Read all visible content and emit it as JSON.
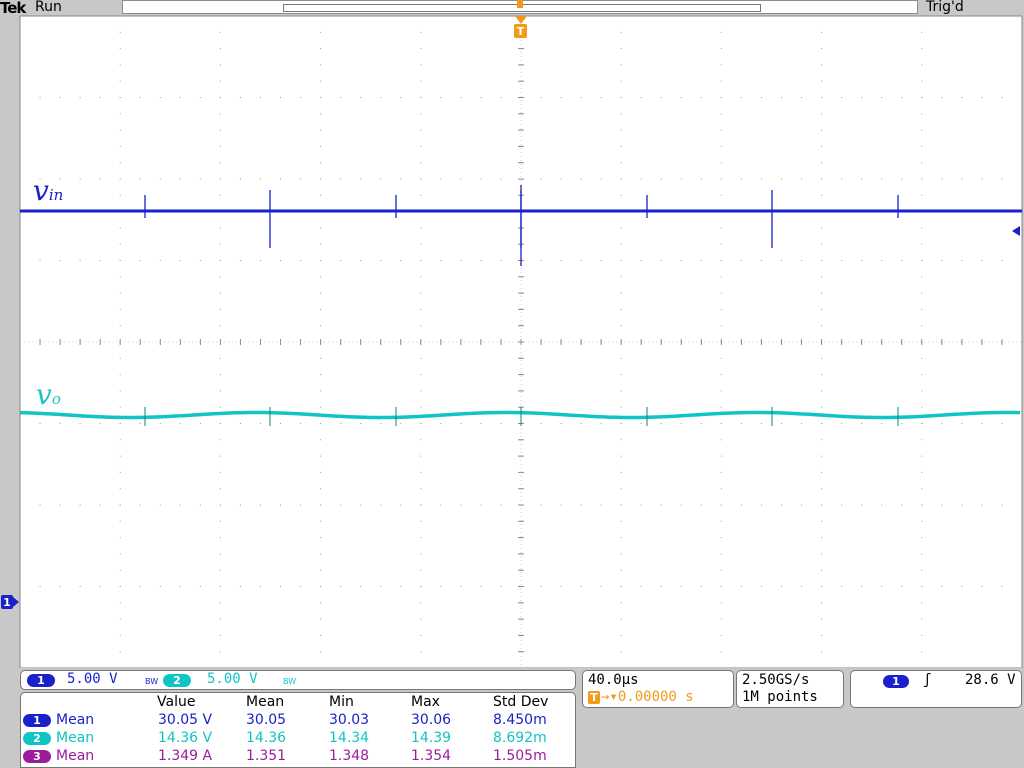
{
  "header": {
    "brand": "Tek",
    "run_state": "Run",
    "trigger_state": "Trig'd",
    "trigger_marker": "T"
  },
  "channels": [
    {
      "num": "1",
      "scale": "5.00 V",
      "bw": "BW",
      "color": "#1a21c8"
    },
    {
      "num": "2",
      "scale": "5.00 V",
      "bw": "BW",
      "color": "#11c4c4"
    }
  ],
  "trace_labels": {
    "vin_main": "v",
    "vin_sub": "in",
    "vo_main": "v",
    "vo_sub": "o"
  },
  "markers": {
    "ch1_ground": "1",
    "trigger_level": "←"
  },
  "timebase": {
    "time_per_div": "40.0µs",
    "trigger_icon": "T",
    "delay": "→▾0.00000 s"
  },
  "acquisition": {
    "sample_rate": "2.50GS/s",
    "record_length": "1M points"
  },
  "trigger": {
    "source": "1",
    "slope": "ʃ",
    "level": "28.6 V"
  },
  "measurements": {
    "headers": [
      "Value",
      "Mean",
      "Min",
      "Max",
      "Std Dev"
    ],
    "rows": [
      {
        "ch": "1",
        "type": "Mean",
        "value": "30.05 V",
        "mean": "30.05",
        "min": "30.03",
        "max": "30.06",
        "std": "8.450m",
        "color": "#1a21c8"
      },
      {
        "ch": "2",
        "type": "Mean",
        "value": "14.36 V",
        "mean": "14.36",
        "min": "14.34",
        "max": "14.39",
        "std": "8.692m",
        "color": "#11c4c4"
      },
      {
        "ch": "3",
        "type": "Mean",
        "value": "1.349 A",
        "mean": "1.351",
        "min": "1.348",
        "max": "1.354",
        "std": "1.505m",
        "color": "#9b1d9b"
      }
    ]
  },
  "colors": {
    "ch1": "#1a21c8",
    "ch2": "#11c4c4",
    "ch3": "#9b1d9b",
    "trigger": "#f29a1a",
    "bezel": "#c8c8c8"
  }
}
